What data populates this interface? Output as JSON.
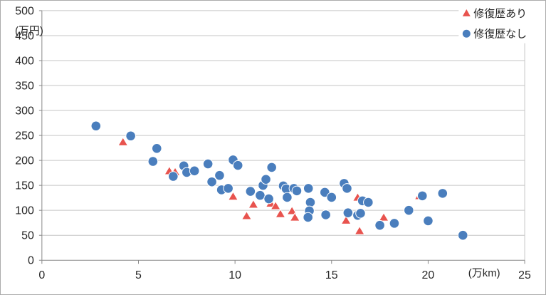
{
  "chart_data": {
    "type": "scatter",
    "title": "",
    "xlabel": "(万km)",
    "ylabel": "(万円)",
    "xlim": [
      0,
      25
    ],
    "ylim": [
      0,
      500
    ],
    "xticks": [
      0,
      5,
      10,
      15,
      20,
      25
    ],
    "yticks": [
      0,
      50,
      100,
      150,
      200,
      250,
      300,
      350,
      400,
      450,
      500
    ],
    "grid": true,
    "legend_position": "top-right-inside",
    "series": [
      {
        "id": "repaired",
        "name": "修復歴あり",
        "marker": "triangle",
        "color": "#e8534e",
        "points": [
          [
            4.2,
            237
          ],
          [
            6.6,
            179
          ],
          [
            6.9,
            177
          ],
          [
            9.9,
            128
          ],
          [
            10.6,
            89
          ],
          [
            10.95,
            112
          ],
          [
            11.85,
            114
          ],
          [
            12.1,
            109
          ],
          [
            12.35,
            93
          ],
          [
            12.95,
            99
          ],
          [
            13.1,
            86
          ],
          [
            15.75,
            80
          ],
          [
            16.35,
            126
          ],
          [
            16.45,
            59
          ],
          [
            17.7,
            86
          ],
          [
            19.55,
            129
          ]
        ]
      },
      {
        "id": "not-repaired",
        "name": "修復歴なし",
        "marker": "circle",
        "color": "#4a7ebd",
        "points": [
          [
            2.8,
            269
          ],
          [
            4.6,
            249
          ],
          [
            5.75,
            198
          ],
          [
            5.95,
            224
          ],
          [
            6.8,
            168
          ],
          [
            7.35,
            189
          ],
          [
            7.5,
            176
          ],
          [
            7.9,
            179
          ],
          [
            8.6,
            193
          ],
          [
            8.8,
            157
          ],
          [
            9.2,
            170
          ],
          [
            9.3,
            141
          ],
          [
            9.65,
            144
          ],
          [
            9.9,
            201
          ],
          [
            10.15,
            190
          ],
          [
            10.8,
            138
          ],
          [
            11.3,
            130
          ],
          [
            11.45,
            150
          ],
          [
            11.6,
            162
          ],
          [
            11.75,
            123
          ],
          [
            11.9,
            186
          ],
          [
            12.5,
            149
          ],
          [
            12.65,
            143
          ],
          [
            12.7,
            126
          ],
          [
            13.05,
            144
          ],
          [
            13.2,
            139
          ],
          [
            13.8,
            144
          ],
          [
            13.9,
            116
          ],
          [
            13.85,
            99
          ],
          [
            13.78,
            86
          ],
          [
            14.65,
            136
          ],
          [
            14.7,
            91
          ],
          [
            15.0,
            126
          ],
          [
            15.65,
            154
          ],
          [
            15.8,
            144
          ],
          [
            15.85,
            95
          ],
          [
            16.35,
            90
          ],
          [
            16.5,
            94
          ],
          [
            16.6,
            119
          ],
          [
            16.9,
            116
          ],
          [
            17.5,
            70
          ],
          [
            18.25,
            74
          ],
          [
            19.0,
            100
          ],
          [
            19.7,
            129
          ],
          [
            20.0,
            79
          ],
          [
            20.75,
            134
          ],
          [
            21.8,
            50
          ]
        ]
      }
    ]
  },
  "colors": {
    "background": "#ffffff",
    "frame_border": "#ababab",
    "gridline": "#c6c6c6",
    "axis": "#898989",
    "tick_text": "#262626",
    "marker_outline": "#ffffff",
    "series_repaired": "#e8534e",
    "series_not_repaired": "#4a7ebd"
  }
}
